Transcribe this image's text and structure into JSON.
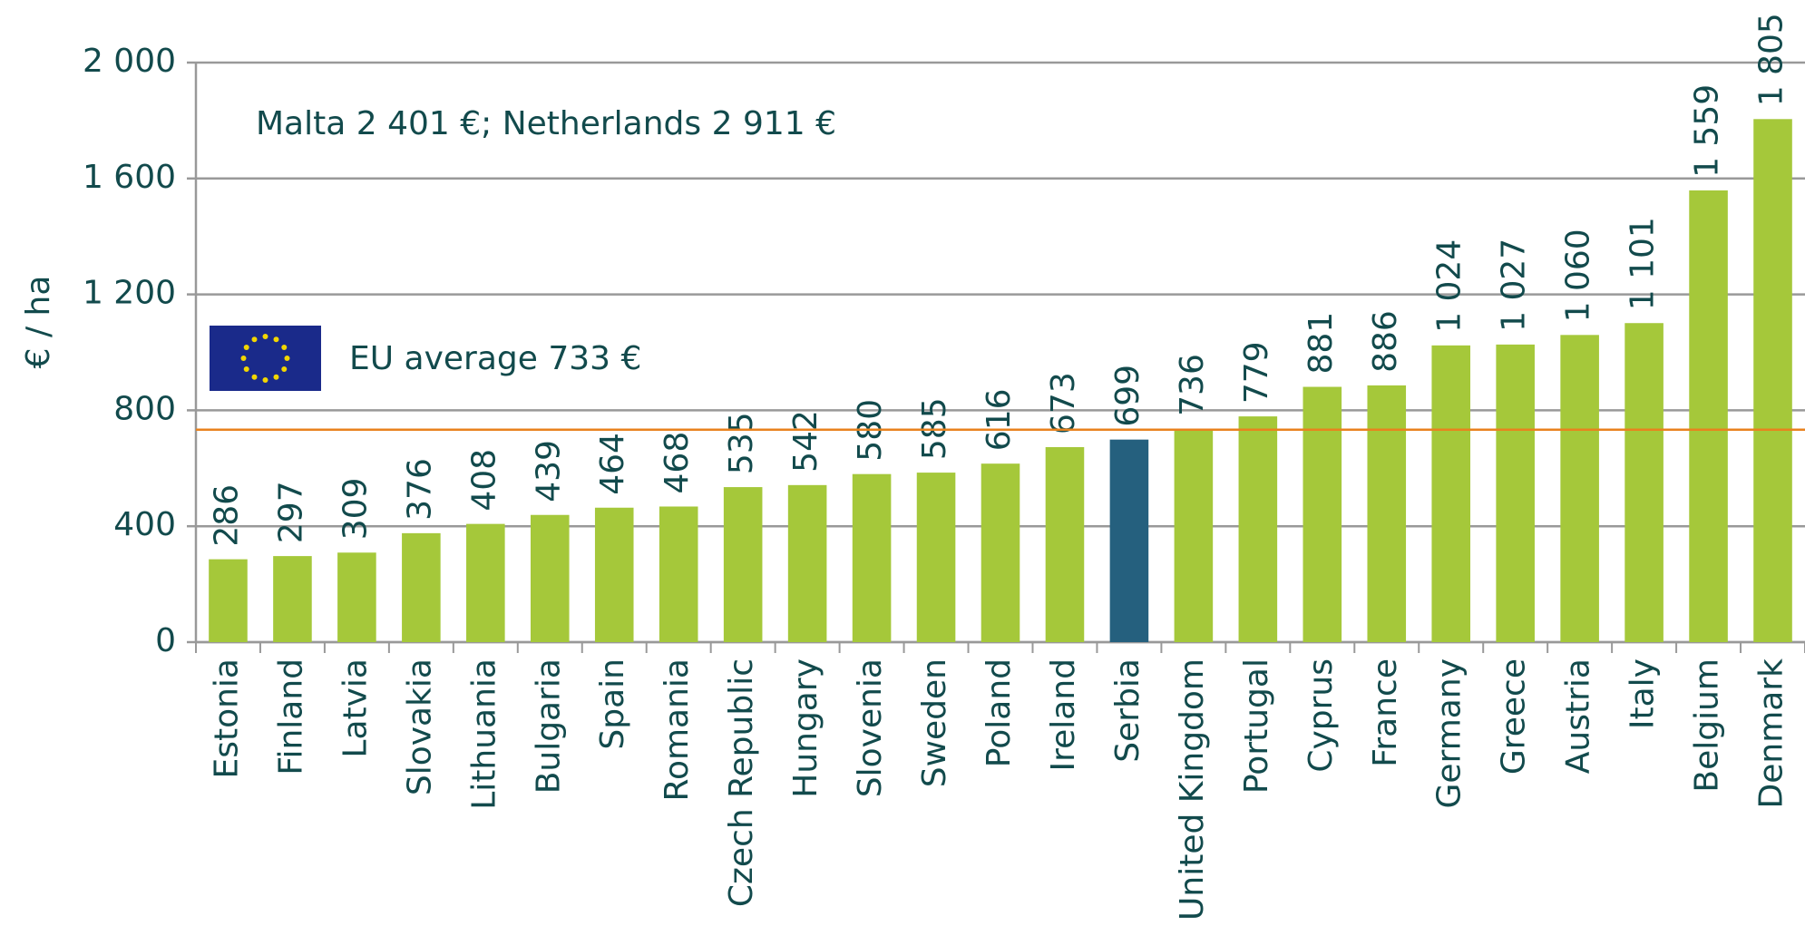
{
  "chart_data": {
    "type": "bar",
    "y_label": "€ / ha",
    "annotation": "Malta 2 401 €;  Netherlands 2 911 €",
    "reference_line": {
      "value": 733,
      "label": "EU average 733 €",
      "color": "#e8821e"
    },
    "categories": [
      "Estonia",
      "Finland",
      "Latvia",
      "Slovakia",
      "Lithuania",
      "Bulgaria",
      "Spain",
      "Romania",
      "Czech Republic",
      "Hungary",
      "Slovenia",
      "Sweden",
      "Poland",
      "Ireland",
      "Serbia",
      "United Kingdom",
      "Portugal",
      "Cyprus",
      "France",
      "Germany",
      "Greece",
      "Austria",
      "Italy",
      "Belgium",
      "Denmark"
    ],
    "values": [
      286,
      297,
      309,
      376,
      408,
      439,
      464,
      468,
      535,
      542,
      580,
      585,
      616,
      673,
      699,
      736,
      779,
      881,
      886,
      1024,
      1027,
      1060,
      1101,
      1559,
      1805
    ],
    "value_labels": [
      "286",
      "297",
      "309",
      "376",
      "408",
      "439",
      "464",
      "468",
      "535",
      "542",
      "580",
      "585",
      "616",
      "673",
      "699",
      "736",
      "779",
      "881",
      "886",
      "1 024",
      "1 027",
      "1 060",
      "1 101",
      "1 559",
      "1 805"
    ],
    "colors": [
      "#a5c83a",
      "#a5c83a",
      "#a5c83a",
      "#a5c83a",
      "#a5c83a",
      "#a5c83a",
      "#a5c83a",
      "#a5c83a",
      "#a5c83a",
      "#a5c83a",
      "#a5c83a",
      "#a5c83a",
      "#a5c83a",
      "#a5c83a",
      "#25607e",
      "#a5c83a",
      "#a5c83a",
      "#a5c83a",
      "#a5c83a",
      "#a5c83a",
      "#a5c83a",
      "#a5c83a",
      "#a5c83a",
      "#a5c83a",
      "#a5c83a"
    ],
    "ylim": [
      0,
      2000
    ],
    "yticks": [
      0,
      {
        "value": 400,
        "label": "400"
      },
      800,
      {
        "value": 1200,
        "label": "1 200"
      },
      {
        "value": 1600,
        "label": "1 600"
      },
      {
        "value": 2000,
        "label": "2 000"
      }
    ],
    "grid": true
  }
}
